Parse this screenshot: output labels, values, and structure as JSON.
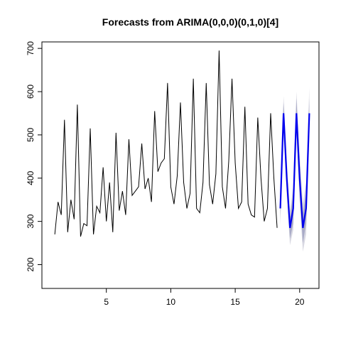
{
  "chart_data": {
    "type": "line",
    "title": "Forecasts from ARIMA(0,0,0)(0,1,0)[4]",
    "xlabel": "",
    "ylabel": "",
    "xlim": [
      0.0,
      21.5
    ],
    "ylim": [
      145,
      715
    ],
    "x_ticks": [
      5,
      10,
      15,
      20
    ],
    "y_ticks": [
      200,
      300,
      400,
      500,
      600,
      700
    ],
    "grid": false,
    "legend": "none",
    "series": [
      {
        "role": "observed",
        "color": "#000000",
        "x_start": 1.0,
        "x_step": 0.25,
        "values": [
          270,
          345,
          315,
          535,
          275,
          350,
          305,
          570,
          265,
          295,
          290,
          515,
          270,
          335,
          320,
          425,
          300,
          390,
          275,
          505,
          325,
          370,
          315,
          490,
          360,
          370,
          380,
          480,
          375,
          400,
          345,
          555,
          415,
          435,
          445,
          620,
          380,
          340,
          405,
          575,
          390,
          330,
          365,
          630,
          330,
          320,
          390,
          620,
          385,
          340,
          410,
          695,
          380,
          330,
          440,
          630,
          435,
          330,
          345,
          565,
          340,
          315,
          310,
          540,
          400,
          300,
          330,
          550,
          400,
          285
        ]
      },
      {
        "role": "forecast",
        "color": "#0000ee",
        "x_start": 18.5,
        "x_step": 0.25,
        "values": [
          330,
          550,
          400,
          285,
          330,
          550,
          400,
          285,
          330,
          550
        ],
        "lower80": [
          305,
          525,
          375,
          260,
          295,
          515,
          365,
          250,
          295,
          515
        ],
        "upper80": [
          355,
          575,
          425,
          310,
          365,
          585,
          435,
          320,
          365,
          585
        ],
        "lower95": [
          290,
          510,
          360,
          245,
          280,
          500,
          345,
          230,
          270,
          490
        ],
        "upper95": [
          370,
          590,
          440,
          325,
          380,
          600,
          455,
          340,
          390,
          610
        ]
      }
    ],
    "band_colors": {
      "interval_95": "#d8d8e2",
      "interval_80": "#a9abc7"
    }
  }
}
